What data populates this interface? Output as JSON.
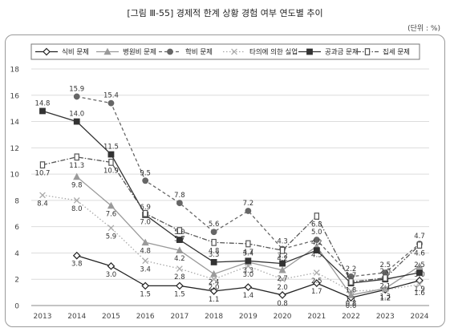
{
  "figure_title": "[그림 Ⅲ-55] 경제적 한계 상황 경험 여부 연도별 추이",
  "unit_label": "(단위 : %)",
  "chart_data": {
    "type": "line",
    "x": [
      "2013",
      "2014",
      "2015",
      "2016",
      "2017",
      "2018",
      "2019",
      "2020",
      "2021",
      "2022",
      "2023",
      "2024"
    ],
    "ylim": [
      0,
      18
    ],
    "yticks": [
      0,
      2,
      4,
      6,
      8,
      10,
      12,
      14,
      16,
      18
    ],
    "grid": true,
    "legend_position": "top",
    "series": [
      {
        "name": "식비 문제",
        "color": "#222222",
        "dash": "solid",
        "marker": "diamond-open",
        "values": [
          null,
          3.8,
          3.0,
          1.5,
          1.5,
          1.1,
          1.4,
          0.8,
          1.7,
          0.6,
          1.2,
          1.9
        ]
      },
      {
        "name": "병원비 문제",
        "color": "#9a9a9a",
        "dash": "solid",
        "marker": "triangle",
        "values": [
          null,
          9.8,
          7.6,
          4.8,
          4.2,
          2.4,
          3.3,
          2.7,
          4.5,
          0.8,
          1.3,
          3.0
        ]
      },
      {
        "name": "학비 문제",
        "color": "#666666",
        "dash": "dashed",
        "marker": "circle",
        "values": [
          null,
          15.9,
          15.4,
          9.5,
          7.8,
          5.6,
          7.2,
          4.3,
          5.0,
          2.2,
          2.5,
          4.7
        ]
      },
      {
        "name": "타의에 의한 실업",
        "color": "#aaaaaa",
        "dash": "dotted",
        "marker": "x",
        "values": [
          8.4,
          8.0,
          5.9,
          3.4,
          2.8,
          2.0,
          3.0,
          2.0,
          2.5,
          1.1,
          1.2,
          1.6
        ]
      },
      {
        "name": "공과금 문제",
        "color": "#333333",
        "dash": "solid",
        "marker": "square",
        "values": [
          14.8,
          14.0,
          11.5,
          6.9,
          5.0,
          3.3,
          3.4,
          3.2,
          4.2,
          1.7,
          2.0,
          2.5
        ]
      },
      {
        "name": "집세 문제",
        "color": "#555555",
        "dash": "dashdot",
        "marker": "square-open",
        "values": [
          10.7,
          11.3,
          10.9,
          7.0,
          5.7,
          4.8,
          4.7,
          4.2,
          6.8,
          1.8,
          2.1,
          4.6
        ]
      }
    ]
  }
}
